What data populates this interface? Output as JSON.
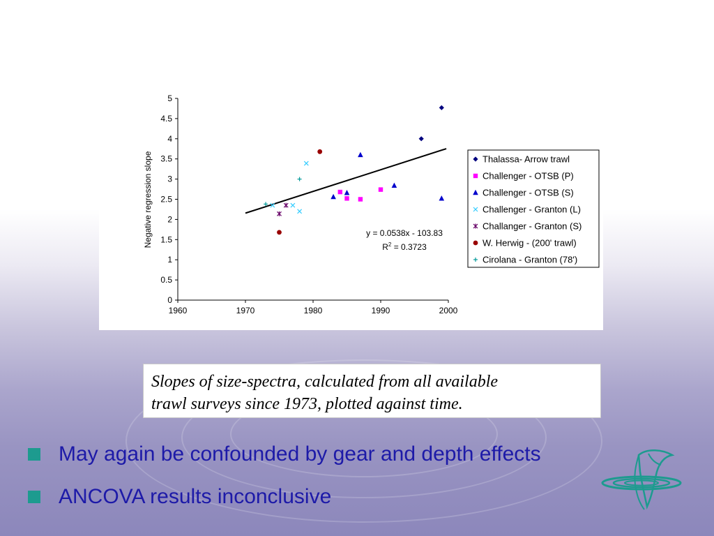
{
  "chart_data": {
    "type": "scatter",
    "title": "",
    "xlabel": "",
    "ylabel": "Negative regression slope",
    "xlim": [
      1960,
      2000
    ],
    "ylim": [
      0,
      5
    ],
    "x_ticks": [
      "1960",
      "1970",
      "1980",
      "1990",
      "2000"
    ],
    "y_ticks": [
      "0",
      "0.5",
      "1",
      "1.5",
      "2",
      "2.5",
      "3",
      "3.5",
      "4",
      "4.5",
      "5"
    ],
    "grid": false,
    "legend_position": "right",
    "series": [
      {
        "name": "Thalassa- Arrow trawl",
        "marker": "diamond",
        "color": "#00007f",
        "points": [
          [
            1996,
            4.0
          ],
          [
            1999,
            4.77
          ]
        ]
      },
      {
        "name": "Challenger - OTSB (P)",
        "marker": "square",
        "color": "#ff00ff",
        "points": [
          [
            1984,
            2.68
          ],
          [
            1985,
            2.52
          ],
          [
            1987,
            2.5
          ],
          [
            1990,
            2.74
          ]
        ]
      },
      {
        "name": "Challenger - OTSB (S)",
        "marker": "triangle",
        "color": "#0000cc",
        "points": [
          [
            1983,
            2.56
          ],
          [
            1985,
            2.66
          ],
          [
            1987,
            3.6
          ],
          [
            1992,
            2.84
          ],
          [
            1999,
            2.52
          ]
        ]
      },
      {
        "name": "Challenger - Granton (L)",
        "marker": "x",
        "color": "#33ccff",
        "points": [
          [
            1974,
            2.35
          ],
          [
            1977,
            2.35
          ],
          [
            1978,
            2.2
          ],
          [
            1979,
            3.39
          ]
        ]
      },
      {
        "name": "Challanger - Granton (S)",
        "marker": "star",
        "color": "#660066",
        "points": [
          [
            1975,
            2.14
          ],
          [
            1976,
            2.35
          ]
        ]
      },
      {
        "name": "W. Herwig - (200' trawl)",
        "marker": "circle",
        "color": "#990000",
        "points": [
          [
            1975,
            1.68
          ],
          [
            1981,
            3.68
          ]
        ]
      },
      {
        "name": "Cirolana - Granton (78')",
        "marker": "plus",
        "color": "#009999",
        "points": [
          [
            1973,
            2.38
          ],
          [
            1978,
            3.0
          ]
        ]
      }
    ],
    "trendline": {
      "slope": 0.0538,
      "intercept": -103.83,
      "x_range": [
        1970,
        1999.7
      ],
      "color": "#000000"
    },
    "annotation": {
      "equation": "y = 0.0538x - 103.83",
      "r2_prefix": "R",
      "r2_sup": "2",
      "r2_value": " = 0.3723"
    }
  },
  "caption": {
    "line1": "Slopes of size-spectra, calculated from all available",
    "line2": "trawl surveys since 1973, plotted against time."
  },
  "bullets": [
    "May again be confounded by gear and depth effects",
    "ANCOVA results inconclusive"
  ],
  "colors": {
    "bullet_marker": "#1d9b8f",
    "bullet_text": "#1d1aa8",
    "logo": "#1d9b8f"
  },
  "logo_icon": "fish-ripple-logo-icon"
}
